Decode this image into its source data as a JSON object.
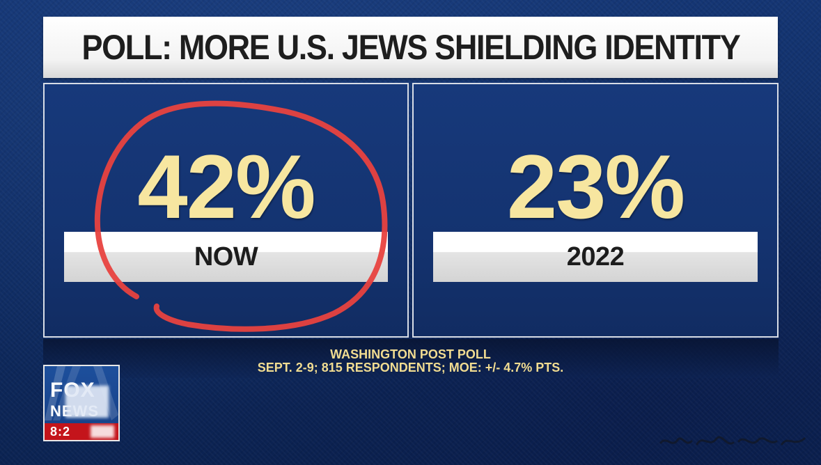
{
  "headline": {
    "title": "POLL: MORE U.S. JEWS SHIELDING IDENTITY"
  },
  "panels": [
    {
      "value": "42%",
      "label": "NOW"
    },
    {
      "value": "23%",
      "label": "2022"
    }
  ],
  "source": {
    "line1": "WASHINGTON POST POLL",
    "line2": "SEPT. 2-9; 815 RESPONDENTS; MOE: +/- 4.7% PTS."
  },
  "logo": {
    "top_text": "FOX",
    "bottom_text": "NEWS",
    "clock": "8:2"
  },
  "colors": {
    "background": "#143573",
    "value_text": "#f7e6a0",
    "source_text": "#f1dc91",
    "annotation": "#e8423f",
    "clock_bar": "#c4141b"
  },
  "icons": {
    "annotation": "red-circle-annotation",
    "logo": "fox-news-logo"
  }
}
